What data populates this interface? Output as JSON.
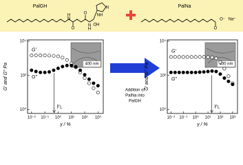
{
  "banner": {
    "left_name": "PalGH",
    "right_name": "PalNa",
    "left_atoms": [
      "O",
      "H",
      "N",
      "O",
      "N",
      "H",
      "OH",
      "N",
      "NH"
    ],
    "right_atoms": [
      "O",
      "O⁻",
      "Na⁺"
    ]
  },
  "arrow_text": [
    "Addition of",
    "PalNa into",
    "PalGH"
  ],
  "chart_data": [
    {
      "type": "scatter",
      "xscale": "log",
      "yscale": "log",
      "xlabel": "γ / %",
      "ylabel": "G′ and G″ Pa",
      "xlim": [
        0.005,
        2500
      ],
      "ylim": [
        0.6,
        12000
      ],
      "xticks": [
        {
          "value": 0.01,
          "label": "10⁻²"
        },
        {
          "value": 0.1,
          "label": "10⁻¹"
        },
        {
          "value": 1,
          "label": "10⁰"
        },
        {
          "value": 10,
          "label": "10¹"
        },
        {
          "value": 100,
          "label": "10²"
        },
        {
          "value": 1000,
          "label": "10³"
        }
      ],
      "yticks": [
        {
          "value": 1,
          "label": "10⁰"
        },
        {
          "value": 100,
          "label": "10²"
        },
        {
          "value": 10000,
          "label": "10⁴"
        }
      ],
      "x": [
        0.01,
        0.0215,
        0.0464,
        0.1,
        0.215,
        0.464,
        1,
        2.15,
        4.64,
        10,
        21.5,
        46.4,
        100,
        215,
        464,
        1000
      ],
      "series": [
        {
          "name": "G′",
          "marker": "open",
          "color": "#000000",
          "values": [
            1500,
            1500,
            1500,
            1480,
            1450,
            1400,
            1300,
            1100,
            800,
            500,
            300,
            150,
            70,
            35,
            18,
            10
          ]
        },
        {
          "name": "G″",
          "marker": "filled",
          "color": "#000000",
          "values": [
            200,
            170,
            150,
            150,
            160,
            200,
            260,
            330,
            380,
            380,
            320,
            200,
            110,
            60,
            35,
            25
          ]
        }
      ],
      "critical_strain": {
        "symbol": "γ",
        "subscript": "L",
        "value": 0.5
      },
      "inset_scale": "400 nm"
    },
    {
      "type": "scatter",
      "xscale": "log",
      "yscale": "log",
      "xlabel": "γ / %",
      "ylabel": "G′ and G″ Pa",
      "xlim": [
        0.005,
        2500
      ],
      "ylim": [
        0.6,
        12000
      ],
      "xticks": [
        {
          "value": 0.01,
          "label": "10⁻²"
        },
        {
          "value": 0.1,
          "label": "10⁻¹"
        },
        {
          "value": 1,
          "label": "10⁰"
        },
        {
          "value": 10,
          "label": "10¹"
        },
        {
          "value": 100,
          "label": "10²"
        },
        {
          "value": 1000,
          "label": "10³"
        }
      ],
      "yticks": [
        {
          "value": 1,
          "label": "10⁰"
        },
        {
          "value": 100,
          "label": "10²"
        },
        {
          "value": 10000,
          "label": "10⁴"
        }
      ],
      "x": [
        0.01,
        0.0215,
        0.0464,
        0.1,
        0.215,
        0.464,
        1,
        2.15,
        4.64,
        10,
        21.5,
        46.4,
        100,
        215,
        464,
        1000
      ],
      "series": [
        {
          "name": "G′",
          "marker": "open",
          "color": "#000000",
          "values": [
            1200,
            1200,
            1200,
            1200,
            1200,
            1200,
            1200,
            1200,
            1200,
            1190,
            1150,
            1000,
            600,
            250,
            90,
            35
          ]
        },
        {
          "name": "G″",
          "marker": "filled",
          "color": "#000000",
          "values": [
            150,
            150,
            150,
            150,
            150,
            150,
            150,
            155,
            160,
            170,
            180,
            170,
            120,
            70,
            45,
            30
          ]
        }
      ],
      "critical_strain": {
        "symbol": "γ",
        "subscript": "L",
        "value": 20
      },
      "inset_scale": "400 nm"
    }
  ]
}
